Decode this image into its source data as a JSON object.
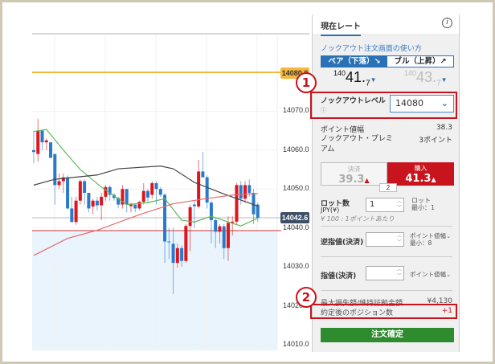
{
  "chart": {
    "price_axis": [
      "14080.0",
      "14070.0",
      "14060.0",
      "14050.0",
      "14040.0",
      "14030.0",
      "14020.0",
      "14010.0"
    ],
    "knockout_level_label": "14080.0",
    "current_price_label": "14042.6",
    "knockout_level": 14080,
    "current_price": 14042.6,
    "stop_line": 14039.3,
    "colors": {
      "up": "#e0141c",
      "down": "#2a7acb",
      "knockout": "#f6b73c",
      "ma_short": "#5cb85c",
      "ma_mid": "#444444",
      "ma_long": "#e36b6b",
      "shade": "#eaf4fd"
    },
    "candles": [
      [
        14060,
        14065,
        14056.6,
        14059.5
      ],
      [
        14059,
        14068,
        14057,
        14065
      ],
      [
        14065,
        14065,
        14060,
        14062
      ],
      [
        14062,
        14063,
        14060,
        14062.5
      ],
      [
        14062,
        14062,
        14058,
        14058
      ],
      [
        14059,
        14059,
        14046,
        14051
      ],
      [
        14051,
        14054,
        14050,
        14052
      ],
      [
        14052,
        14054,
        14049,
        14053
      ],
      [
        14053,
        14053.5,
        14044.7,
        14045
      ],
      [
        14045,
        14048,
        14041.5,
        14041.5
      ],
      [
        14041.5,
        14048,
        14040.8,
        14047
      ],
      [
        14047,
        14052.5,
        14046,
        14052
      ],
      [
        14052,
        14052.5,
        14046,
        14049
      ],
      [
        14049,
        14049,
        14044,
        14045
      ],
      [
        14045.5,
        14047.5,
        14043.5,
        14047
      ],
      [
        14047,
        14048,
        14044.5,
        14045.8
      ],
      [
        14045.8,
        14049,
        14042,
        14048
      ],
      [
        14048,
        14051,
        14047,
        14050.5
      ],
      [
        14050.5,
        14051,
        14047,
        14048.5
      ],
      [
        14048.5,
        14049,
        14047,
        14047.7
      ],
      [
        14047.7,
        14048,
        14045,
        14046
      ],
      [
        14046,
        14051,
        14045,
        14050
      ],
      [
        14050,
        14050,
        14044,
        14046
      ],
      [
        14045.6,
        14046.5,
        14044,
        14046
      ],
      [
        14046,
        14046,
        14044,
        14045
      ],
      [
        14045,
        14047,
        14044.5,
        14046.7
      ],
      [
        14046.7,
        14051.5,
        14046,
        14049.5
      ],
      [
        14049.5,
        14050,
        14046.5,
        14047.8
      ],
      [
        14048.5,
        14052,
        14047.5,
        14051.5
      ],
      [
        14051.5,
        14052,
        14046,
        14050
      ],
      [
        14050,
        14050.5,
        14048,
        14048.5
      ],
      [
        14048.5,
        14049,
        14031,
        14036.5
      ],
      [
        14036.5,
        14040,
        14032,
        14036.3
      ],
      [
        14035.9,
        14040,
        14023,
        14031
      ],
      [
        14031,
        14036,
        14029.8,
        14034.8
      ],
      [
        14034.8,
        14035.5,
        14030,
        14031.5
      ],
      [
        14031.5,
        14041,
        14031,
        14040.5
      ],
      [
        14040.5,
        14046,
        14034,
        14045.3
      ],
      [
        14046,
        14047,
        14040,
        14045.6
      ],
      [
        14045.5,
        14057.5,
        14045,
        14054.5
      ],
      [
        14054.5,
        14059.5,
        14053,
        14053
      ],
      [
        14053,
        14053.5,
        14045,
        14046.5
      ],
      [
        14046.5,
        14047,
        14036,
        14042
      ],
      [
        14042,
        14042.5,
        14034.8,
        14039
      ],
      [
        14039,
        14041,
        14036,
        14040.4
      ],
      [
        14040.4,
        14041,
        14032,
        14034.8
      ],
      [
        14034.8,
        14043,
        14031.5,
        14041.3
      ],
      [
        14041.3,
        14043,
        14038,
        14041.6
      ],
      [
        14041.6,
        14051.5,
        14041,
        14051
      ],
      [
        14051,
        14052,
        14046,
        14047.5
      ],
      [
        14047.5,
        14052,
        14046.5,
        14051
      ],
      [
        14051,
        14052.5,
        14048,
        14049
      ],
      [
        14049,
        14050,
        14041,
        14043.5
      ],
      [
        14046,
        14046.5,
        14041.5,
        14042.6
      ]
    ],
    "ma_short": [
      [
        0,
        14064.8
      ],
      [
        3,
        14065.3
      ],
      [
        7,
        14060
      ],
      [
        11,
        14055
      ],
      [
        16,
        14050.5
      ],
      [
        22,
        14046
      ],
      [
        27,
        14046.5
      ],
      [
        31,
        14047.5
      ],
      [
        35,
        14042
      ],
      [
        38,
        14041.5
      ],
      [
        42,
        14043
      ],
      [
        46,
        14041.5
      ],
      [
        49,
        14040.5
      ],
      [
        53,
        14042.5
      ]
    ],
    "ma_mid": [
      [
        0,
        14051
      ],
      [
        5,
        14052.5
      ],
      [
        15,
        14053.6
      ],
      [
        20,
        14055.2
      ],
      [
        30,
        14055.9
      ],
      [
        33,
        14055.2
      ],
      [
        38,
        14051.7
      ],
      [
        45,
        14048.7
      ],
      [
        53,
        14045.6
      ]
    ],
    "ma_long": [
      [
        0,
        14032.9
      ],
      [
        8,
        14037.3
      ],
      [
        15,
        14039.4
      ],
      [
        25,
        14043.4
      ],
      [
        33,
        14046.2
      ],
      [
        40,
        14047.4
      ],
      [
        48,
        14048.6
      ],
      [
        53,
        14048.8
      ]
    ]
  },
  "panel": {
    "tab": "現在レート",
    "info": "i",
    "howto_link": "ノックアウト注文画面の使い方",
    "bear_label": "ベア（下落）↘",
    "bull_label": "ブル（上昇）↗",
    "bear_rate_prefix": "140",
    "bear_rate_main": "41.",
    "bear_rate_sub": "7",
    "bull_rate_prefix": "140",
    "bull_rate_main": "43.",
    "bull_rate_sub": "7",
    "knockout_level_label": "ノックアウトレベル",
    "knockout_level_value": "14080",
    "point_width_label": "ポイント値幅",
    "point_width_value": "38.3",
    "premium_label": "ノックアウト・プレミアム",
    "premium_value": "3ポイント",
    "sell_label": "決済",
    "sell_price": "39.3",
    "buy_label": "購入",
    "buy_price": "41.3",
    "spread": "2",
    "lot_label": "ロット数",
    "lot_currency": "JPY(¥)",
    "lot_value": "1",
    "lot_unit": "ロット",
    "lot_min": "最小：1",
    "lot_note": "¥ 100 : 1ポイントあたり",
    "stop_label": "逆指値(決済)",
    "stop_unit": "ポイント値幅",
    "stop_min": "最小：8",
    "limit_label": "指値(決済)",
    "limit_unit": "ポイント値幅",
    "max_loss_label": "最大損失額/維持証拠金額",
    "max_loss_value": "¥4,130",
    "positions_label": "約定後のポジション数",
    "positions_value": "+1",
    "order_button": "注文確定"
  },
  "callouts": [
    "1",
    "2"
  ]
}
